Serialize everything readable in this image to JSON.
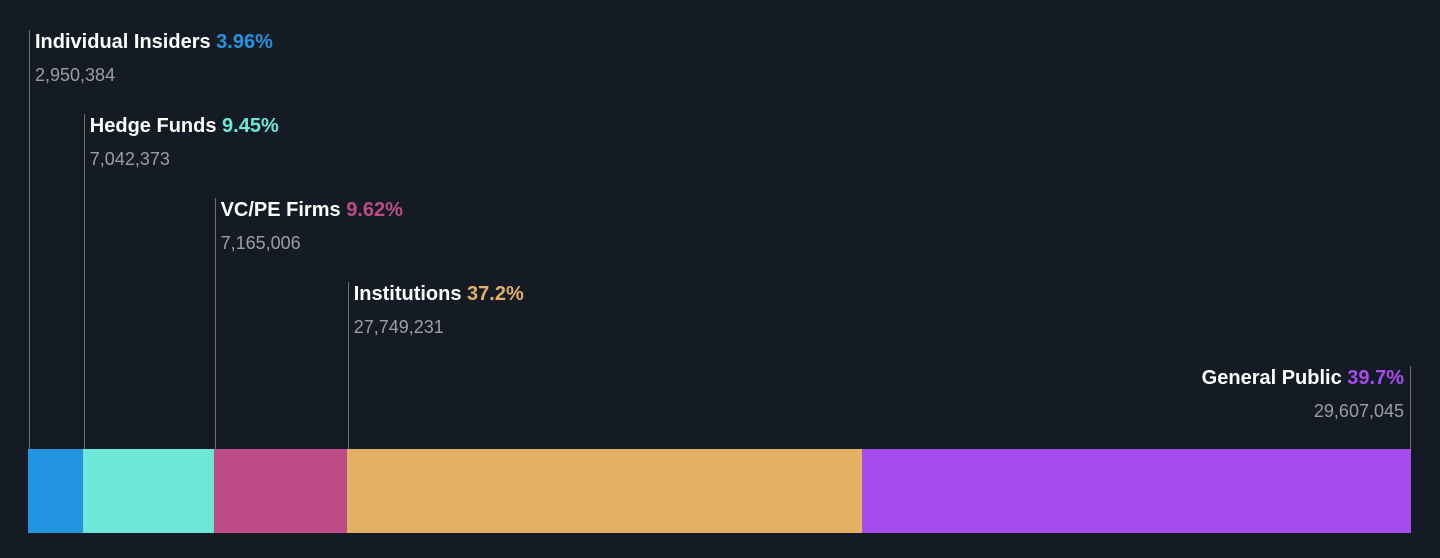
{
  "chart_data": {
    "type": "bar",
    "orientation": "horizontal-stacked",
    "categories": [
      "Individual Insiders",
      "Hedge Funds",
      "VC/PE Firms",
      "Institutions",
      "General Public"
    ],
    "series": [
      {
        "percent_labels": [
          "3.96%",
          "9.45%",
          "9.62%",
          "37.2%",
          "39.7%"
        ],
        "values": [
          3.96,
          9.45,
          9.62,
          37.2,
          39.7
        ],
        "share_counts": [
          "2,950,384",
          "7,042,373",
          "7,165,006",
          "27,749,231",
          "29,607,045"
        ]
      }
    ],
    "colors": [
      "#2394df",
      "#6ee8d6",
      "#bc4b86",
      "#e3b064",
      "#a64bec"
    ],
    "xlim": [
      0,
      100
    ],
    "grid": false,
    "legend": "none"
  }
}
